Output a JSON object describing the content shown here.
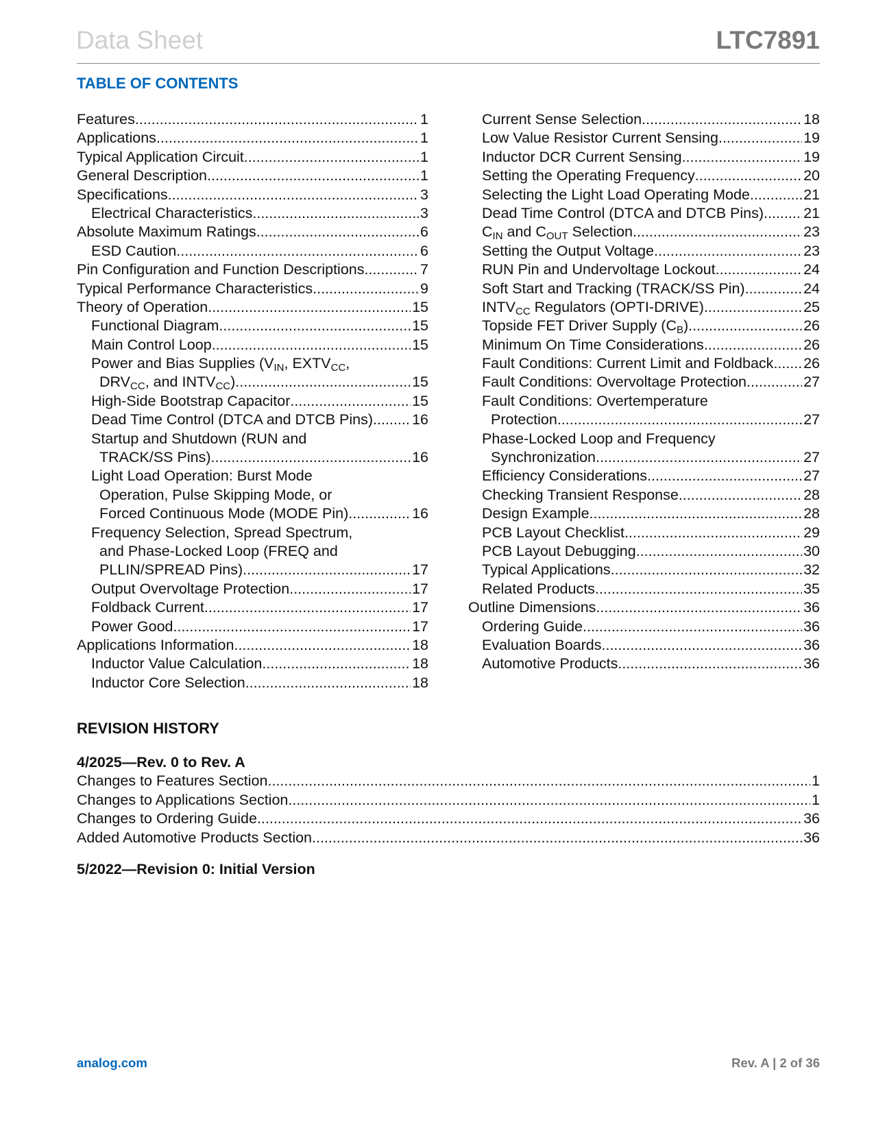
{
  "header": {
    "left": "Data Sheet",
    "right": "LTC7891"
  },
  "toc": {
    "title": "TABLE OF CONTENTS",
    "left": [
      {
        "lvl": 0,
        "lines": [
          [
            {
              "t": "Features"
            }
          ]
        ],
        "page": "1"
      },
      {
        "lvl": 0,
        "lines": [
          [
            {
              "t": "Applications"
            }
          ]
        ],
        "page": "1"
      },
      {
        "lvl": 0,
        "lines": [
          [
            {
              "t": "Typical Application Circuit "
            }
          ]
        ],
        "page": "1"
      },
      {
        "lvl": 0,
        "lines": [
          [
            {
              "t": "General Description"
            }
          ]
        ],
        "page": "1"
      },
      {
        "lvl": 0,
        "lines": [
          [
            {
              "t": "Specifications"
            }
          ]
        ],
        "page": "3"
      },
      {
        "lvl": 1,
        "lines": [
          [
            {
              "t": "Electrical Characteristics"
            }
          ]
        ],
        "page": "3"
      },
      {
        "lvl": 0,
        "lines": [
          [
            {
              "t": "Absolute Maximum Ratings"
            }
          ]
        ],
        "page": "6"
      },
      {
        "lvl": 1,
        "lines": [
          [
            {
              "t": "ESD Caution"
            }
          ]
        ],
        "page": "6"
      },
      {
        "lvl": 0,
        "lines": [
          [
            {
              "t": "Pin Configuration and Function Descriptions"
            }
          ]
        ],
        "page": "7"
      },
      {
        "lvl": 0,
        "lines": [
          [
            {
              "t": "Typical Performance Characteristics"
            }
          ]
        ],
        "page": "9"
      },
      {
        "lvl": 0,
        "lines": [
          [
            {
              "t": "Theory of Operation"
            }
          ]
        ],
        "page": "15"
      },
      {
        "lvl": 1,
        "lines": [
          [
            {
              "t": "Functional Diagram"
            }
          ]
        ],
        "page": "15"
      },
      {
        "lvl": 1,
        "lines": [
          [
            {
              "t": "Main Control Loop"
            }
          ]
        ],
        "page": "15"
      },
      {
        "lvl": 1,
        "lines": [
          [
            {
              "t": "Power and Bias Supplies (V"
            },
            {
              "s": "IN"
            },
            {
              "t": ", EXTV"
            },
            {
              "s": "CC"
            },
            {
              "t": ","
            }
          ],
          [
            {
              "t": "DRV"
            },
            {
              "s": "CC"
            },
            {
              "t": ", and INTV"
            },
            {
              "s": "CC"
            },
            {
              "t": ")"
            }
          ]
        ],
        "page": "15"
      },
      {
        "lvl": 1,
        "lines": [
          [
            {
              "t": "High-Side Bootstrap Capacitor"
            }
          ]
        ],
        "page": "15"
      },
      {
        "lvl": 1,
        "lines": [
          [
            {
              "t": "Dead Time Control (DTCA and DTCB Pins)"
            }
          ]
        ],
        "page": "16"
      },
      {
        "lvl": 1,
        "lines": [
          [
            {
              "t": "Startup and Shutdown (RUN and"
            }
          ],
          [
            {
              "t": "TRACK/SS Pins)"
            }
          ]
        ],
        "page": "16"
      },
      {
        "lvl": 1,
        "lines": [
          [
            {
              "t": "Light Load Operation: Burst Mode"
            }
          ],
          [
            {
              "t": "Operation, Pulse Skipping Mode, or"
            }
          ],
          [
            {
              "t": "Forced Continuous Mode (MODE Pin)"
            }
          ]
        ],
        "page": "16"
      },
      {
        "lvl": 1,
        "lines": [
          [
            {
              "t": "Frequency Selection, Spread Spectrum,"
            }
          ],
          [
            {
              "t": "and Phase-Locked Loop (FREQ and"
            }
          ],
          [
            {
              "t": "PLLIN/SPREAD Pins)"
            }
          ]
        ],
        "page": "17"
      },
      {
        "lvl": 1,
        "lines": [
          [
            {
              "t": "Output Overvoltage Protection"
            }
          ]
        ],
        "page": "17"
      },
      {
        "lvl": 1,
        "lines": [
          [
            {
              "t": "Foldback Current"
            }
          ]
        ],
        "page": "17"
      },
      {
        "lvl": 1,
        "lines": [
          [
            {
              "t": "Power Good"
            }
          ]
        ],
        "page": "17"
      },
      {
        "lvl": 0,
        "lines": [
          [
            {
              "t": "Applications Information"
            }
          ]
        ],
        "page": "18"
      },
      {
        "lvl": 1,
        "lines": [
          [
            {
              "t": "Inductor Value Calculation"
            }
          ]
        ],
        "page": "18"
      },
      {
        "lvl": 1,
        "lines": [
          [
            {
              "t": "Inductor Core Selection"
            }
          ]
        ],
        "page": "18"
      }
    ],
    "right": [
      {
        "lvl": 1,
        "lines": [
          [
            {
              "t": "Current Sense Selection"
            }
          ]
        ],
        "page": "18"
      },
      {
        "lvl": 1,
        "lines": [
          [
            {
              "t": "Low Value Resistor Current Sensing"
            }
          ]
        ],
        "page": "19"
      },
      {
        "lvl": 1,
        "lines": [
          [
            {
              "t": "Inductor DCR Current Sensing"
            }
          ]
        ],
        "page": "19"
      },
      {
        "lvl": 1,
        "lines": [
          [
            {
              "t": "Setting the Operating Frequency"
            }
          ]
        ],
        "page": "20"
      },
      {
        "lvl": 1,
        "lines": [
          [
            {
              "t": "Selecting the Light Load Operating Mode"
            }
          ]
        ],
        "page": "21"
      },
      {
        "lvl": 1,
        "lines": [
          [
            {
              "t": "Dead Time Control (DTCA and DTCB Pins)"
            }
          ]
        ],
        "page": "21"
      },
      {
        "lvl": 1,
        "lines": [
          [
            {
              "t": "C"
            },
            {
              "s": "IN"
            },
            {
              "t": " and C"
            },
            {
              "s": "OUT"
            },
            {
              "t": " Selection"
            }
          ]
        ],
        "page": "23"
      },
      {
        "lvl": 1,
        "lines": [
          [
            {
              "t": "Setting the Output Voltage"
            }
          ]
        ],
        "page": "23"
      },
      {
        "lvl": 1,
        "lines": [
          [
            {
              "t": "RUN Pin and Undervoltage Lockout"
            }
          ]
        ],
        "page": "24"
      },
      {
        "lvl": 1,
        "lines": [
          [
            {
              "t": "Soft Start and Tracking (TRACK/SS Pin)"
            }
          ]
        ],
        "page": "24"
      },
      {
        "lvl": 1,
        "lines": [
          [
            {
              "t": "INTV"
            },
            {
              "s": "CC"
            },
            {
              "t": " Regulators (OPTI-DRIVE)"
            }
          ]
        ],
        "page": "25"
      },
      {
        "lvl": 1,
        "lines": [
          [
            {
              "t": "Topside FET Driver Supply (C"
            },
            {
              "s": "B"
            },
            {
              "t": ")"
            }
          ]
        ],
        "page": "26"
      },
      {
        "lvl": 1,
        "lines": [
          [
            {
              "t": "Minimum On Time Considerations"
            }
          ]
        ],
        "page": "26"
      },
      {
        "lvl": 1,
        "lines": [
          [
            {
              "t": "Fault Conditions: Current Limit and Foldback"
            }
          ]
        ],
        "page": "26"
      },
      {
        "lvl": 1,
        "lines": [
          [
            {
              "t": "Fault Conditions: Overvoltage Protection"
            }
          ]
        ],
        "page": "27"
      },
      {
        "lvl": 1,
        "lines": [
          [
            {
              "t": "Fault Conditions: Overtemperature"
            }
          ],
          [
            {
              "t": "Protection"
            }
          ]
        ],
        "page": "27"
      },
      {
        "lvl": 1,
        "lines": [
          [
            {
              "t": "Phase-Locked Loop and Frequency"
            }
          ],
          [
            {
              "t": "Synchronization"
            }
          ]
        ],
        "page": "27"
      },
      {
        "lvl": 1,
        "lines": [
          [
            {
              "t": "Efficiency Considerations"
            }
          ]
        ],
        "page": "27"
      },
      {
        "lvl": 1,
        "lines": [
          [
            {
              "t": "Checking Transient Response"
            }
          ]
        ],
        "page": "28"
      },
      {
        "lvl": 1,
        "lines": [
          [
            {
              "t": "Design Example"
            }
          ]
        ],
        "page": "28"
      },
      {
        "lvl": 1,
        "lines": [
          [
            {
              "t": "PCB Layout Checklist"
            }
          ]
        ],
        "page": "29"
      },
      {
        "lvl": 1,
        "lines": [
          [
            {
              "t": "PCB Layout Debugging"
            }
          ]
        ],
        "page": "30"
      },
      {
        "lvl": 1,
        "lines": [
          [
            {
              "t": "Typical Applications"
            }
          ]
        ],
        "page": "32"
      },
      {
        "lvl": 1,
        "lines": [
          [
            {
              "t": "Related Products"
            }
          ]
        ],
        "page": "35"
      },
      {
        "lvl": 0,
        "lines": [
          [
            {
              "t": "Outline Dimensions"
            }
          ]
        ],
        "page": "36"
      },
      {
        "lvl": 1,
        "lines": [
          [
            {
              "t": "Ordering Guide"
            }
          ]
        ],
        "page": "36"
      },
      {
        "lvl": 1,
        "lines": [
          [
            {
              "t": "Evaluation Boards"
            }
          ]
        ],
        "page": "36"
      },
      {
        "lvl": 1,
        "lines": [
          [
            {
              "t": "Automotive Products"
            }
          ]
        ],
        "page": "36"
      }
    ]
  },
  "revision_history": {
    "title": "REVISION HISTORY",
    "revisions": [
      {
        "date": "4/2025—Rev. 0 to Rev. A",
        "changes": [
          {
            "text": "Changes to Features Section",
            "page": "1"
          },
          {
            "text": "Changes to Applications Section ",
            "page": "1"
          },
          {
            "text": "Changes to Ordering Guide ",
            "page": "36"
          },
          {
            "text": "Added Automotive Products Section",
            "page": "36"
          }
        ]
      },
      {
        "date": "5/2022—Revision 0: Initial Version",
        "changes": []
      }
    ]
  },
  "footer": {
    "left": "analog.com",
    "right": "Rev. A | 2 of 36"
  },
  "colors": {
    "accent": "#0067b9",
    "header_gray": "#7a7a7a",
    "title_light": "#cfcfcf"
  }
}
